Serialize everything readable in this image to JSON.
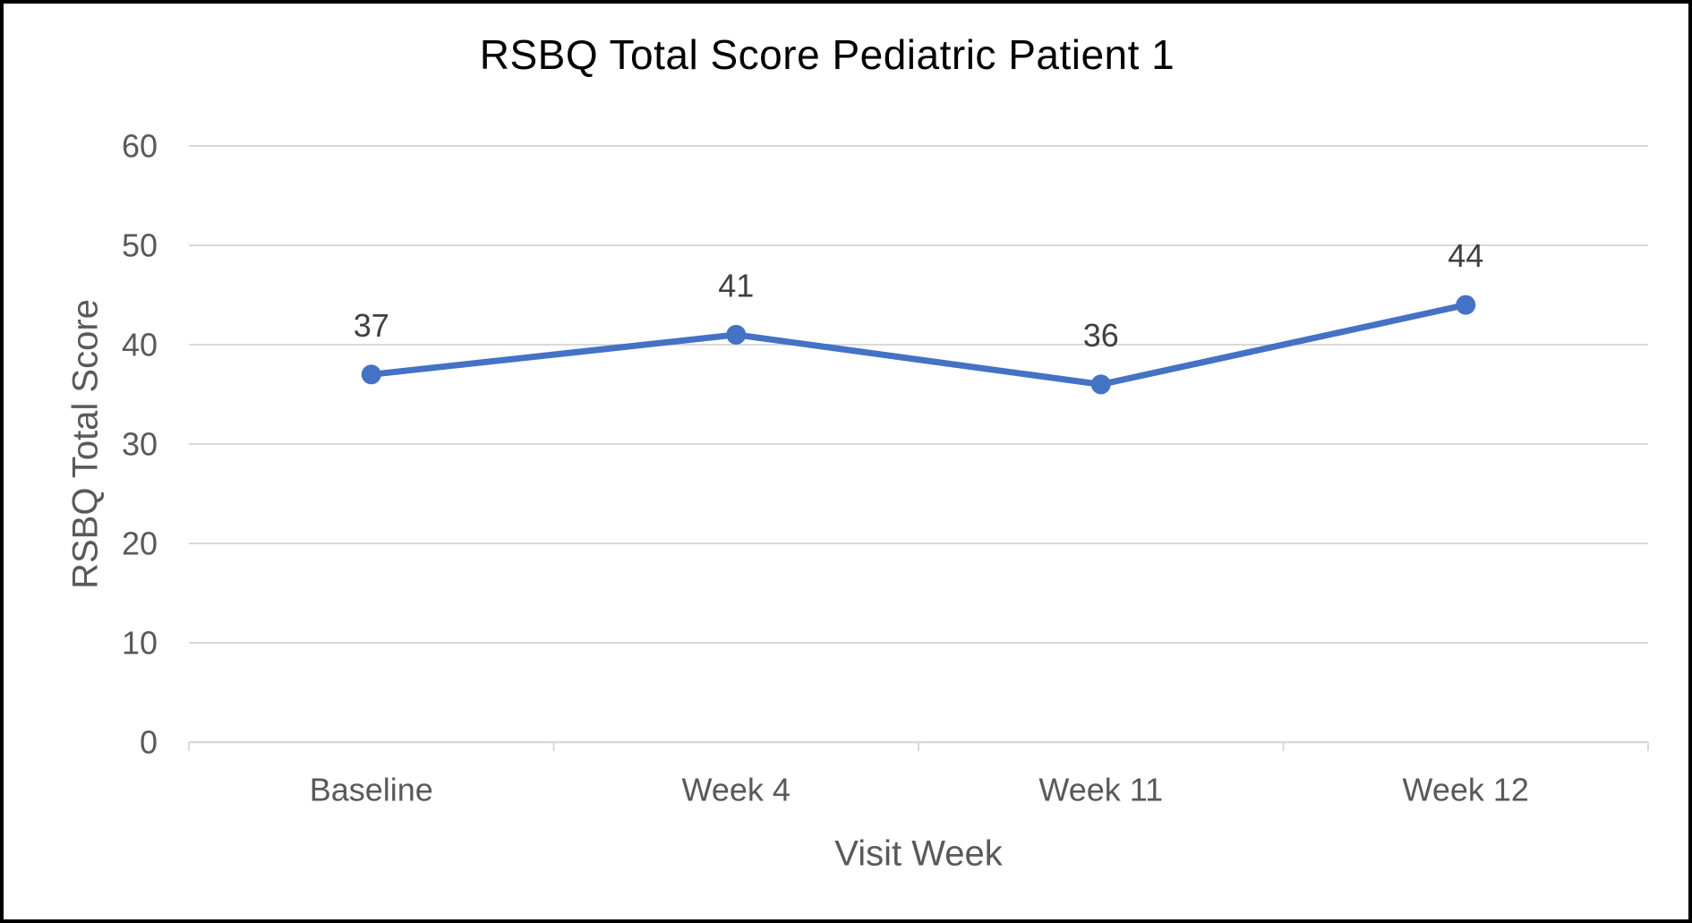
{
  "chart_data": {
    "type": "line",
    "title": "RSBQ Total Score Pediatric Patient 1",
    "xlabel": "Visit Week",
    "ylabel": "RSBQ Total Score",
    "categories": [
      "Baseline",
      "Week 4",
      "Week 11",
      "Week 12"
    ],
    "series": [
      {
        "name": "RSBQ Total Score",
        "values": [
          37,
          41,
          36,
          44
        ]
      }
    ],
    "data_labels_shown": true,
    "ylim": [
      0,
      60
    ],
    "yticks": [
      0,
      10,
      20,
      30,
      40,
      50,
      60
    ],
    "grid": "horizontal-major",
    "legend": "none",
    "colors": {
      "line": "#4472C4",
      "marker": "#4472C4",
      "gridline": "#D9D9D9",
      "axis_line": "#D9D9D9",
      "title_text": "#000000",
      "axis_text": "#595959",
      "data_label_text": "#404040",
      "border": "#000000",
      "background": "#FFFFFF"
    }
  }
}
